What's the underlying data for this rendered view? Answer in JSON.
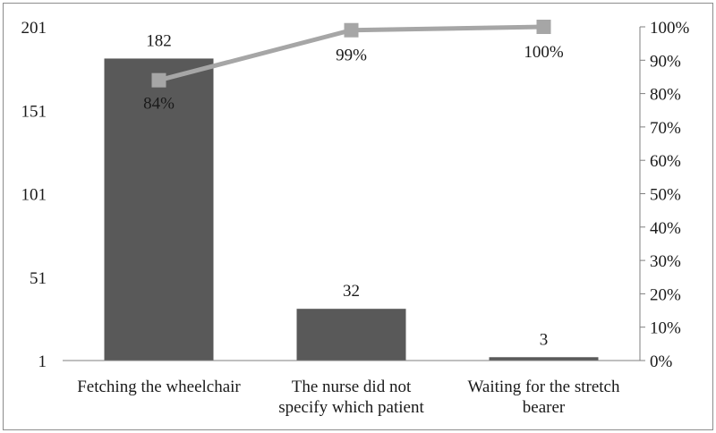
{
  "chart_data": {
    "type": "bar",
    "categories": [
      [
        "Fetching the wheelchair"
      ],
      [
        "The nurse did not",
        "specify which patient"
      ],
      [
        "Waiting for the stretch",
        "bearer"
      ]
    ],
    "series": [
      {
        "type": "bar",
        "values": [
          182,
          32,
          3
        ],
        "data_labels": [
          "182",
          "32",
          "3"
        ],
        "color": "#595959"
      },
      {
        "type": "line",
        "axis": "right",
        "values": [
          84,
          99,
          100
        ],
        "data_labels": [
          "84%",
          "99%",
          "100%"
        ],
        "color": "#a6a6a6"
      }
    ],
    "y_left": {
      "min": 1,
      "max": 201,
      "ticks": [
        1,
        51,
        101,
        151,
        201
      ]
    },
    "y_right": {
      "min": 0,
      "max": 100,
      "ticks": [
        "0%",
        "10%",
        "20%",
        "30%",
        "40%",
        "50%",
        "60%",
        "70%",
        "80%",
        "90%",
        "100%"
      ]
    },
    "grid": false,
    "legend": "none"
  }
}
